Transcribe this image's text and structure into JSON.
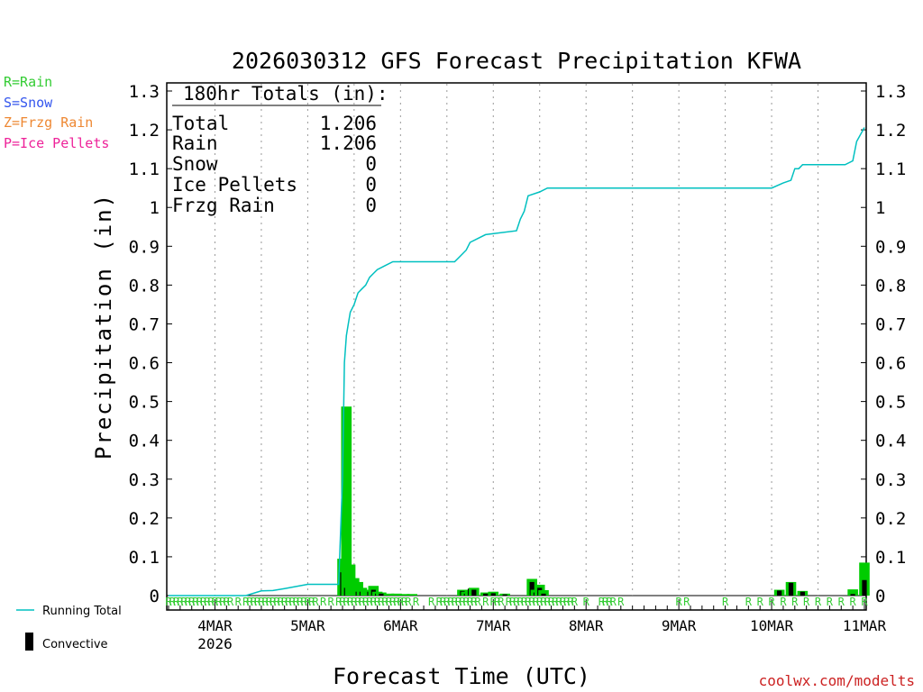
{
  "chart_data": {
    "type": "bar+line",
    "title": "2026030312 GFS Forecast Precipitation KFWA",
    "xlabel": "Forecast Time (UTC)",
    "ylabel": "Precipitation (in)",
    "ylim": [
      0,
      1.3
    ],
    "yticks": [
      0,
      0.1,
      0.2,
      0.3,
      0.4,
      0.5,
      0.6,
      0.7,
      0.8,
      0.9,
      1,
      1.1,
      1.2,
      1.3
    ],
    "ytick_labels": [
      "0",
      "0.1",
      "0.2",
      "0.3",
      "0.4",
      "0.5",
      "0.6",
      "0.7",
      "0.8",
      "0.9",
      "1",
      "1.1",
      "1.2",
      "1.3"
    ],
    "xlim_hours": [
      0,
      180
    ],
    "xticks": [
      {
        "hour": 12,
        "label": "4MAR",
        "sublabel": "2026"
      },
      {
        "hour": 36,
        "label": "5MAR"
      },
      {
        "hour": 60,
        "label": "6MAR"
      },
      {
        "hour": 84,
        "label": "7MAR"
      },
      {
        "hour": 108,
        "label": "8MAR"
      },
      {
        "hour": 132,
        "label": "9MAR"
      },
      {
        "hour": 156,
        "label": "10MAR"
      },
      {
        "hour": 180,
        "label": "11MAR"
      }
    ],
    "grid": "vertical-dotted",
    "legend": {
      "type_keys": [
        {
          "text": "R=Rain",
          "color": "#33cc33"
        },
        {
          "text": "S=Snow",
          "color": "#3355ee"
        },
        {
          "text": "Z=Frzg Rain",
          "color": "#ee8833"
        },
        {
          "text": "P=Ice Pellets",
          "color": "#ee2299"
        }
      ],
      "running_total": {
        "text": "Running Total",
        "color": "#00c0c0"
      },
      "convective": {
        "text": "Convective",
        "color": "#000000"
      }
    },
    "totals": {
      "heading": "180hr Totals (in):",
      "rows": [
        {
          "label": "Total",
          "value": "1.206"
        },
        {
          "label": "Rain",
          "value": "1.206"
        },
        {
          "label": "Snow",
          "value": "0"
        },
        {
          "label": "Ice Pellets",
          "value": "0"
        },
        {
          "label": "Frzg Rain",
          "value": "0"
        }
      ]
    },
    "running_total": {
      "name": "Running Total",
      "x": [
        0,
        20,
        24,
        27,
        30,
        36,
        44,
        45,
        45.5,
        46,
        46.5,
        47,
        48,
        49,
        50,
        51,
        52,
        53,
        54,
        56,
        58,
        60,
        66,
        74,
        76,
        77,
        78,
        80,
        82,
        90,
        91,
        92,
        93,
        96,
        98,
        102,
        111,
        114,
        132,
        150,
        156,
        159,
        161,
        162,
        163,
        164,
        175,
        177,
        178,
        180
      ],
      "y": [
        0,
        0,
        0.012,
        0.013,
        0.018,
        0.029,
        0.029,
        0.3,
        0.6,
        0.67,
        0.7,
        0.73,
        0.75,
        0.78,
        0.79,
        0.8,
        0.82,
        0.83,
        0.84,
        0.85,
        0.86,
        0.86,
        0.86,
        0.86,
        0.88,
        0.89,
        0.91,
        0.92,
        0.93,
        0.94,
        0.97,
        0.99,
        1.03,
        1.04,
        1.05,
        1.05,
        1.05,
        1.05,
        1.05,
        1.05,
        1.05,
        1.063,
        1.07,
        1.1,
        1.1,
        1.11,
        1.11,
        1.12,
        1.17,
        1.206
      ]
    },
    "bars": {
      "name": "Precipitation",
      "x": [
        45,
        46,
        47,
        48,
        49,
        50,
        51,
        52,
        53,
        54,
        55,
        57,
        59,
        61,
        63,
        76,
        77,
        78,
        79,
        82,
        84,
        87,
        94,
        95,
        96,
        97,
        158,
        161,
        164,
        177,
        180
      ],
      "values": [
        0.095,
        0.487,
        0.08,
        0.045,
        0.035,
        0.02,
        0.015,
        0.012,
        0.025,
        0.01,
        0.008,
        0.005,
        0.005,
        0.004,
        0.004,
        0.015,
        0.01,
        0.015,
        0.02,
        0.008,
        0.01,
        0.005,
        0.043,
        0.015,
        0.028,
        0.014,
        0.015,
        0.035,
        0.012,
        0.016,
        0.085
      ],
      "convective": [
        0.06,
        0.02,
        0.0,
        0.0,
        0.01,
        0.01,
        0.0,
        0.01,
        0.015,
        0.005,
        0.005,
        0.0,
        0.0,
        0.0,
        0.0,
        0.012,
        0.005,
        0.018,
        0.015,
        0.005,
        0.006,
        0.003,
        0.035,
        0.008,
        0.02,
        0.005,
        0.013,
        0.033,
        0.01,
        0.004,
        0.04
      ]
    },
    "precip_type_markers": {
      "text": "R",
      "hours": [
        0,
        1,
        2,
        3,
        4,
        5,
        6,
        7,
        8,
        9,
        10,
        11,
        12,
        13,
        14,
        15,
        16,
        18,
        20,
        21,
        22,
        23,
        24,
        25,
        26,
        27,
        28,
        29,
        30,
        31,
        32,
        33,
        34,
        35,
        36,
        37,
        38,
        40,
        42,
        44,
        45,
        46,
        47,
        48,
        49,
        50,
        51,
        52,
        53,
        54,
        55,
        56,
        57,
        58,
        59,
        60,
        61,
        62,
        64,
        68,
        70,
        71,
        72,
        73,
        74,
        75,
        76,
        77,
        78,
        79,
        80,
        82,
        84,
        85,
        86,
        88,
        89,
        90,
        91,
        92,
        93,
        94,
        95,
        96,
        97,
        98,
        99,
        100,
        101,
        102,
        103,
        104,
        105,
        108,
        112,
        113,
        114,
        115,
        117,
        132,
        134,
        144,
        150,
        153,
        156,
        159,
        162,
        165,
        168,
        171,
        174,
        177,
        180
      ]
    },
    "credit": "coolwx.com/modelts"
  }
}
